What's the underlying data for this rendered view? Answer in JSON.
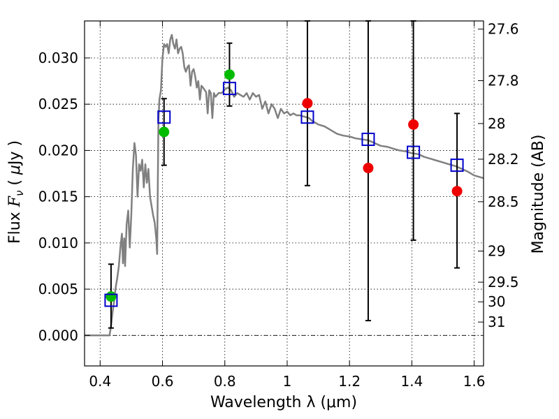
{
  "chart_data": {
    "type": "scatter",
    "xlabel": "Wavelength  λ (μm)",
    "ylabel": "Flux  F_ν  ( μJy )",
    "y2label": "Magnitude (AB)",
    "xlim": [
      0.35,
      1.63
    ],
    "ylim": [
      -0.0033,
      0.034
    ],
    "xticks": [
      {
        "value": 0.4,
        "label": "0.4"
      },
      {
        "value": 0.6,
        "label": "0.6"
      },
      {
        "value": 0.8,
        "label": "0.8"
      },
      {
        "value": 1.0,
        "label": "1"
      },
      {
        "value": 1.2,
        "label": "1.2"
      },
      {
        "value": 1.4,
        "label": "1.4"
      },
      {
        "value": 1.6,
        "label": "1.6"
      }
    ],
    "yticks": [
      {
        "value": 0.0,
        "label": "0.000"
      },
      {
        "value": 0.005,
        "label": "0.005"
      },
      {
        "value": 0.01,
        "label": "0.010"
      },
      {
        "value": 0.015,
        "label": "0.015"
      },
      {
        "value": 0.02,
        "label": "0.020"
      },
      {
        "value": 0.025,
        "label": "0.025"
      },
      {
        "value": 0.03,
        "label": "0.030"
      }
    ],
    "mag_ticks": [
      {
        "value": 27.6,
        "label": "27.6"
      },
      {
        "value": 27.8,
        "label": "27.8"
      },
      {
        "value": 28.0,
        "label": "28"
      },
      {
        "value": 28.2,
        "label": "28.2"
      },
      {
        "value": 28.5,
        "label": "28.5"
      },
      {
        "value": 29.0,
        "label": "29"
      },
      {
        "value": 29.5,
        "label": "29.5"
      },
      {
        "value": 30.0,
        "label": "30"
      },
      {
        "value": 31.0,
        "label": "31"
      }
    ],
    "grid": true,
    "colors": {
      "model": "#808080",
      "model_points": "#0000cc",
      "detection": "#00bb00",
      "upper_limit": "#ee0000",
      "errorbar": "#000000"
    },
    "model_sed": [
      [
        0.35,
        0.0
      ],
      [
        0.43,
        0.0
      ],
      [
        0.435,
        0.001
      ],
      [
        0.44,
        0.0025
      ],
      [
        0.445,
        0.0038
      ],
      [
        0.45,
        0.0052
      ],
      [
        0.455,
        0.0062
      ],
      [
        0.46,
        0.0075
      ],
      [
        0.465,
        0.0095
      ],
      [
        0.47,
        0.011
      ],
      [
        0.473,
        0.0078
      ],
      [
        0.477,
        0.0105
      ],
      [
        0.48,
        0.0075
      ],
      [
        0.485,
        0.012
      ],
      [
        0.49,
        0.0135
      ],
      [
        0.495,
        0.0095
      ],
      [
        0.5,
        0.013
      ],
      [
        0.505,
        0.018
      ],
      [
        0.51,
        0.0208
      ],
      [
        0.515,
        0.0195
      ],
      [
        0.52,
        0.015
      ],
      [
        0.525,
        0.0185
      ],
      [
        0.53,
        0.0178
      ],
      [
        0.535,
        0.019
      ],
      [
        0.54,
        0.016
      ],
      [
        0.545,
        0.0185
      ],
      [
        0.55,
        0.0165
      ],
      [
        0.555,
        0.018
      ],
      [
        0.56,
        0.015
      ],
      [
        0.565,
        0.014
      ],
      [
        0.57,
        0.013
      ],
      [
        0.575,
        0.0122
      ],
      [
        0.58,
        0.0105
      ],
      [
        0.583,
        0.0088
      ],
      [
        0.587,
        0.023
      ],
      [
        0.59,
        0.0255
      ],
      [
        0.595,
        0.0265
      ],
      [
        0.6,
        0.03
      ],
      [
        0.605,
        0.0315
      ],
      [
        0.61,
        0.0312
      ],
      [
        0.615,
        0.0315
      ],
      [
        0.62,
        0.0305
      ],
      [
        0.625,
        0.032
      ],
      [
        0.63,
        0.0325
      ],
      [
        0.635,
        0.0315
      ],
      [
        0.64,
        0.031
      ],
      [
        0.645,
        0.032
      ],
      [
        0.65,
        0.0305
      ],
      [
        0.655,
        0.031
      ],
      [
        0.66,
        0.0312
      ],
      [
        0.665,
        0.0305
      ],
      [
        0.67,
        0.029
      ],
      [
        0.675,
        0.0285
      ],
      [
        0.68,
        0.029
      ],
      [
        0.685,
        0.0292
      ],
      [
        0.69,
        0.027
      ],
      [
        0.695,
        0.0285
      ],
      [
        0.7,
        0.0288
      ],
      [
        0.705,
        0.028
      ],
      [
        0.71,
        0.0268
      ],
      [
        0.715,
        0.0275
      ],
      [
        0.72,
        0.0255
      ],
      [
        0.725,
        0.027
      ],
      [
        0.73,
        0.0268
      ],
      [
        0.74,
        0.0263
      ],
      [
        0.745,
        0.024
      ],
      [
        0.75,
        0.0265
      ],
      [
        0.755,
        0.0262
      ],
      [
        0.76,
        0.0235
      ],
      [
        0.765,
        0.0262
      ],
      [
        0.77,
        0.0258
      ],
      [
        0.78,
        0.0262
      ],
      [
        0.79,
        0.0262
      ],
      [
        0.8,
        0.0266
      ],
      [
        0.81,
        0.0268
      ],
      [
        0.82,
        0.0265
      ],
      [
        0.83,
        0.0258
      ],
      [
        0.84,
        0.0262
      ],
      [
        0.85,
        0.026
      ],
      [
        0.86,
        0.0258
      ],
      [
        0.87,
        0.0262
      ],
      [
        0.88,
        0.0255
      ],
      [
        0.89,
        0.0262
      ],
      [
        0.9,
        0.0258
      ],
      [
        0.91,
        0.026
      ],
      [
        0.92,
        0.0245
      ],
      [
        0.93,
        0.0253
      ],
      [
        0.94,
        0.024
      ],
      [
        0.95,
        0.025
      ],
      [
        0.96,
        0.0245
      ],
      [
        0.97,
        0.0235
      ],
      [
        0.98,
        0.0245
      ],
      [
        0.99,
        0.024
      ],
      [
        1.0,
        0.0242
      ],
      [
        1.01,
        0.0238
      ],
      [
        1.02,
        0.024
      ],
      [
        1.03,
        0.0238
      ],
      [
        1.04,
        0.0238
      ],
      [
        1.05,
        0.0237
      ],
      [
        1.06,
        0.0236
      ],
      [
        1.07,
        0.0235
      ],
      [
        1.08,
        0.0232
      ],
      [
        1.09,
        0.023
      ],
      [
        1.1,
        0.0228
      ],
      [
        1.12,
        0.0226
      ],
      [
        1.14,
        0.0222
      ],
      [
        1.16,
        0.0218
      ],
      [
        1.18,
        0.0216
      ],
      [
        1.2,
        0.0215
      ],
      [
        1.22,
        0.0213
      ],
      [
        1.24,
        0.0212
      ],
      [
        1.26,
        0.0211
      ],
      [
        1.28,
        0.0208
      ],
      [
        1.3,
        0.0205
      ],
      [
        1.32,
        0.0204
      ],
      [
        1.34,
        0.0202
      ],
      [
        1.36,
        0.02
      ],
      [
        1.38,
        0.0199
      ],
      [
        1.4,
        0.0197
      ],
      [
        1.42,
        0.0196
      ],
      [
        1.44,
        0.0193
      ],
      [
        1.46,
        0.0191
      ],
      [
        1.48,
        0.0189
      ],
      [
        1.5,
        0.0187
      ],
      [
        1.52,
        0.0185
      ],
      [
        1.54,
        0.0183
      ],
      [
        1.56,
        0.018
      ],
      [
        1.58,
        0.0177
      ],
      [
        1.6,
        0.0173
      ],
      [
        1.62,
        0.0171
      ],
      [
        1.63,
        0.017
      ]
    ],
    "model_points": [
      {
        "x": 0.435,
        "y": 0.0038
      },
      {
        "x": 0.605,
        "y": 0.0236
      },
      {
        "x": 0.815,
        "y": 0.0267
      },
      {
        "x": 1.065,
        "y": 0.0236
      },
      {
        "x": 1.26,
        "y": 0.0212
      },
      {
        "x": 1.405,
        "y": 0.0198
      },
      {
        "x": 1.545,
        "y": 0.0184
      }
    ],
    "observed": [
      {
        "x": 0.435,
        "y": 0.0042,
        "yerr_low": 0.0008,
        "yerr_high": 0.0077,
        "class": "detection"
      },
      {
        "x": 0.605,
        "y": 0.022,
        "yerr_low": 0.0184,
        "yerr_high": 0.0256,
        "class": "detection"
      },
      {
        "x": 0.815,
        "y": 0.0282,
        "yerr_low": 0.0248,
        "yerr_high": 0.0316,
        "class": "detection"
      },
      {
        "x": 1.065,
        "y": 0.0251,
        "yerr_low": 0.0162,
        "yerr_high": 0.034,
        "class": "upper_limit"
      },
      {
        "x": 1.26,
        "y": 0.0181,
        "yerr_low": 0.0016,
        "yerr_high": 0.034,
        "class": "upper_limit"
      },
      {
        "x": 1.405,
        "y": 0.0228,
        "yerr_low": 0.0103,
        "yerr_high": 0.034,
        "class": "upper_limit"
      },
      {
        "x": 1.545,
        "y": 0.0156,
        "yerr_low": 0.0073,
        "yerr_high": 0.024,
        "class": "upper_limit"
      }
    ]
  }
}
